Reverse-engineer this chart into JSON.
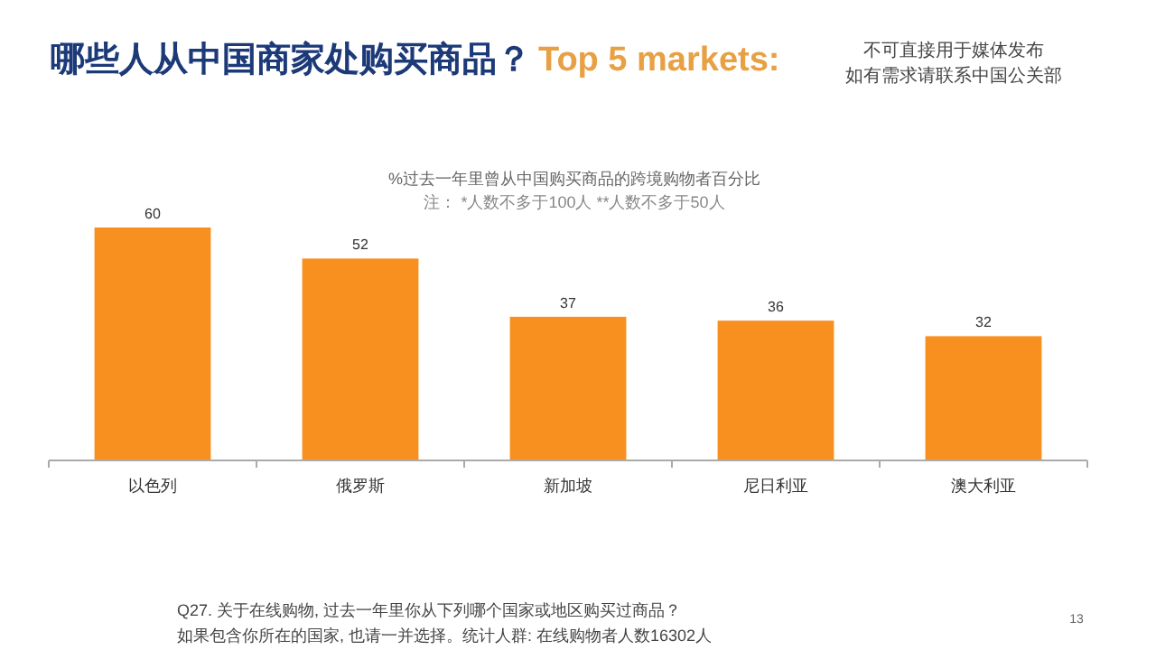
{
  "chart_data": {
    "type": "bar",
    "title": "哪些人从中国商家处购买商品？",
    "subtitle": "%过去一年里曾从中国购买商品的跨境购物者百分比",
    "categories": [
      "以色列",
      "俄罗斯",
      "新加坡",
      "尼日利亚",
      "澳大利亚"
    ],
    "values": [
      60,
      52,
      37,
      36,
      32
    ],
    "color": "#f7901e",
    "data_labels": true,
    "annotations": [
      "Top 5 markets:",
      "不可直接用于媒体发布",
      "如有需求请联系中国公关部",
      "注： *人数不多于100人 **人数不多于50人",
      "Q27. 关于在线购物, 过去一年里你从下列哪个国家或地区购买过商品？",
      "如果包含你所在的国家, 也请一并选择。统计人群: 在线购物者人数16302人",
      "13"
    ]
  }
}
